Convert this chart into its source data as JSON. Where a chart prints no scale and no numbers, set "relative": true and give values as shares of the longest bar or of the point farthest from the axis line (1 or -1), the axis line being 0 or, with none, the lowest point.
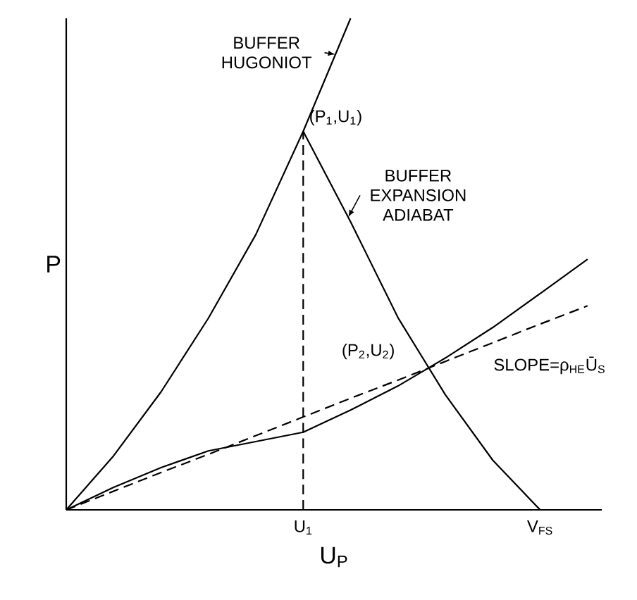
{
  "chart_data": {
    "type": "line",
    "relative": true,
    "xlabel": "U$_{P}$",
    "ylabel": "P",
    "categories": [
      null,
      null,
      null,
      null,
      null,
      "U$_{1}$",
      null,
      null,
      null,
      null,
      "V$_{FS}$",
      null
    ],
    "series": [
      {
        "name": "BUFFER HUGONIOT",
        "color": "#000000",
        "values": [
          0,
          0.11,
          0.24,
          0.39,
          0.56,
          0.77,
          1.0,
          null,
          null,
          null,
          null,
          null
        ]
      },
      {
        "name": "BUFFER EXPANSION ADIABAT",
        "color": "#000000",
        "values": [
          null,
          null,
          null,
          null,
          null,
          0.77,
          0.586,
          0.391,
          0.234,
          0.101,
          0,
          null
        ]
      },
      {
        "color": "#000000",
        "values": [
          0,
          0.046,
          0.086,
          0.12,
          0.139,
          0.158,
          0.203,
          0.252,
          0.309,
          0.371,
          0.44,
          0.51
        ]
      },
      {
        "name": "SLOPE=ρ$_{HE}$Ū$_{S}$",
        "color": "#000000",
        "line_style": "dashed",
        "values": [
          0,
          0.038,
          0.076,
          0.113,
          0.151,
          0.189,
          0.227,
          0.264,
          0.302,
          0.34,
          0.378,
          0.415
        ]
      }
    ],
    "ref_lines": [
      {
        "axis": "x",
        "value": "U$_{1}$",
        "line_style": "dashed"
      }
    ],
    "annotations": [
      {
        "text": "(P$_{1}$,U$_{1}$)",
        "x": "U$_{1}$",
        "y": 0.77
      },
      "(P$_{2}$,U$_{2}$)"
    ]
  }
}
